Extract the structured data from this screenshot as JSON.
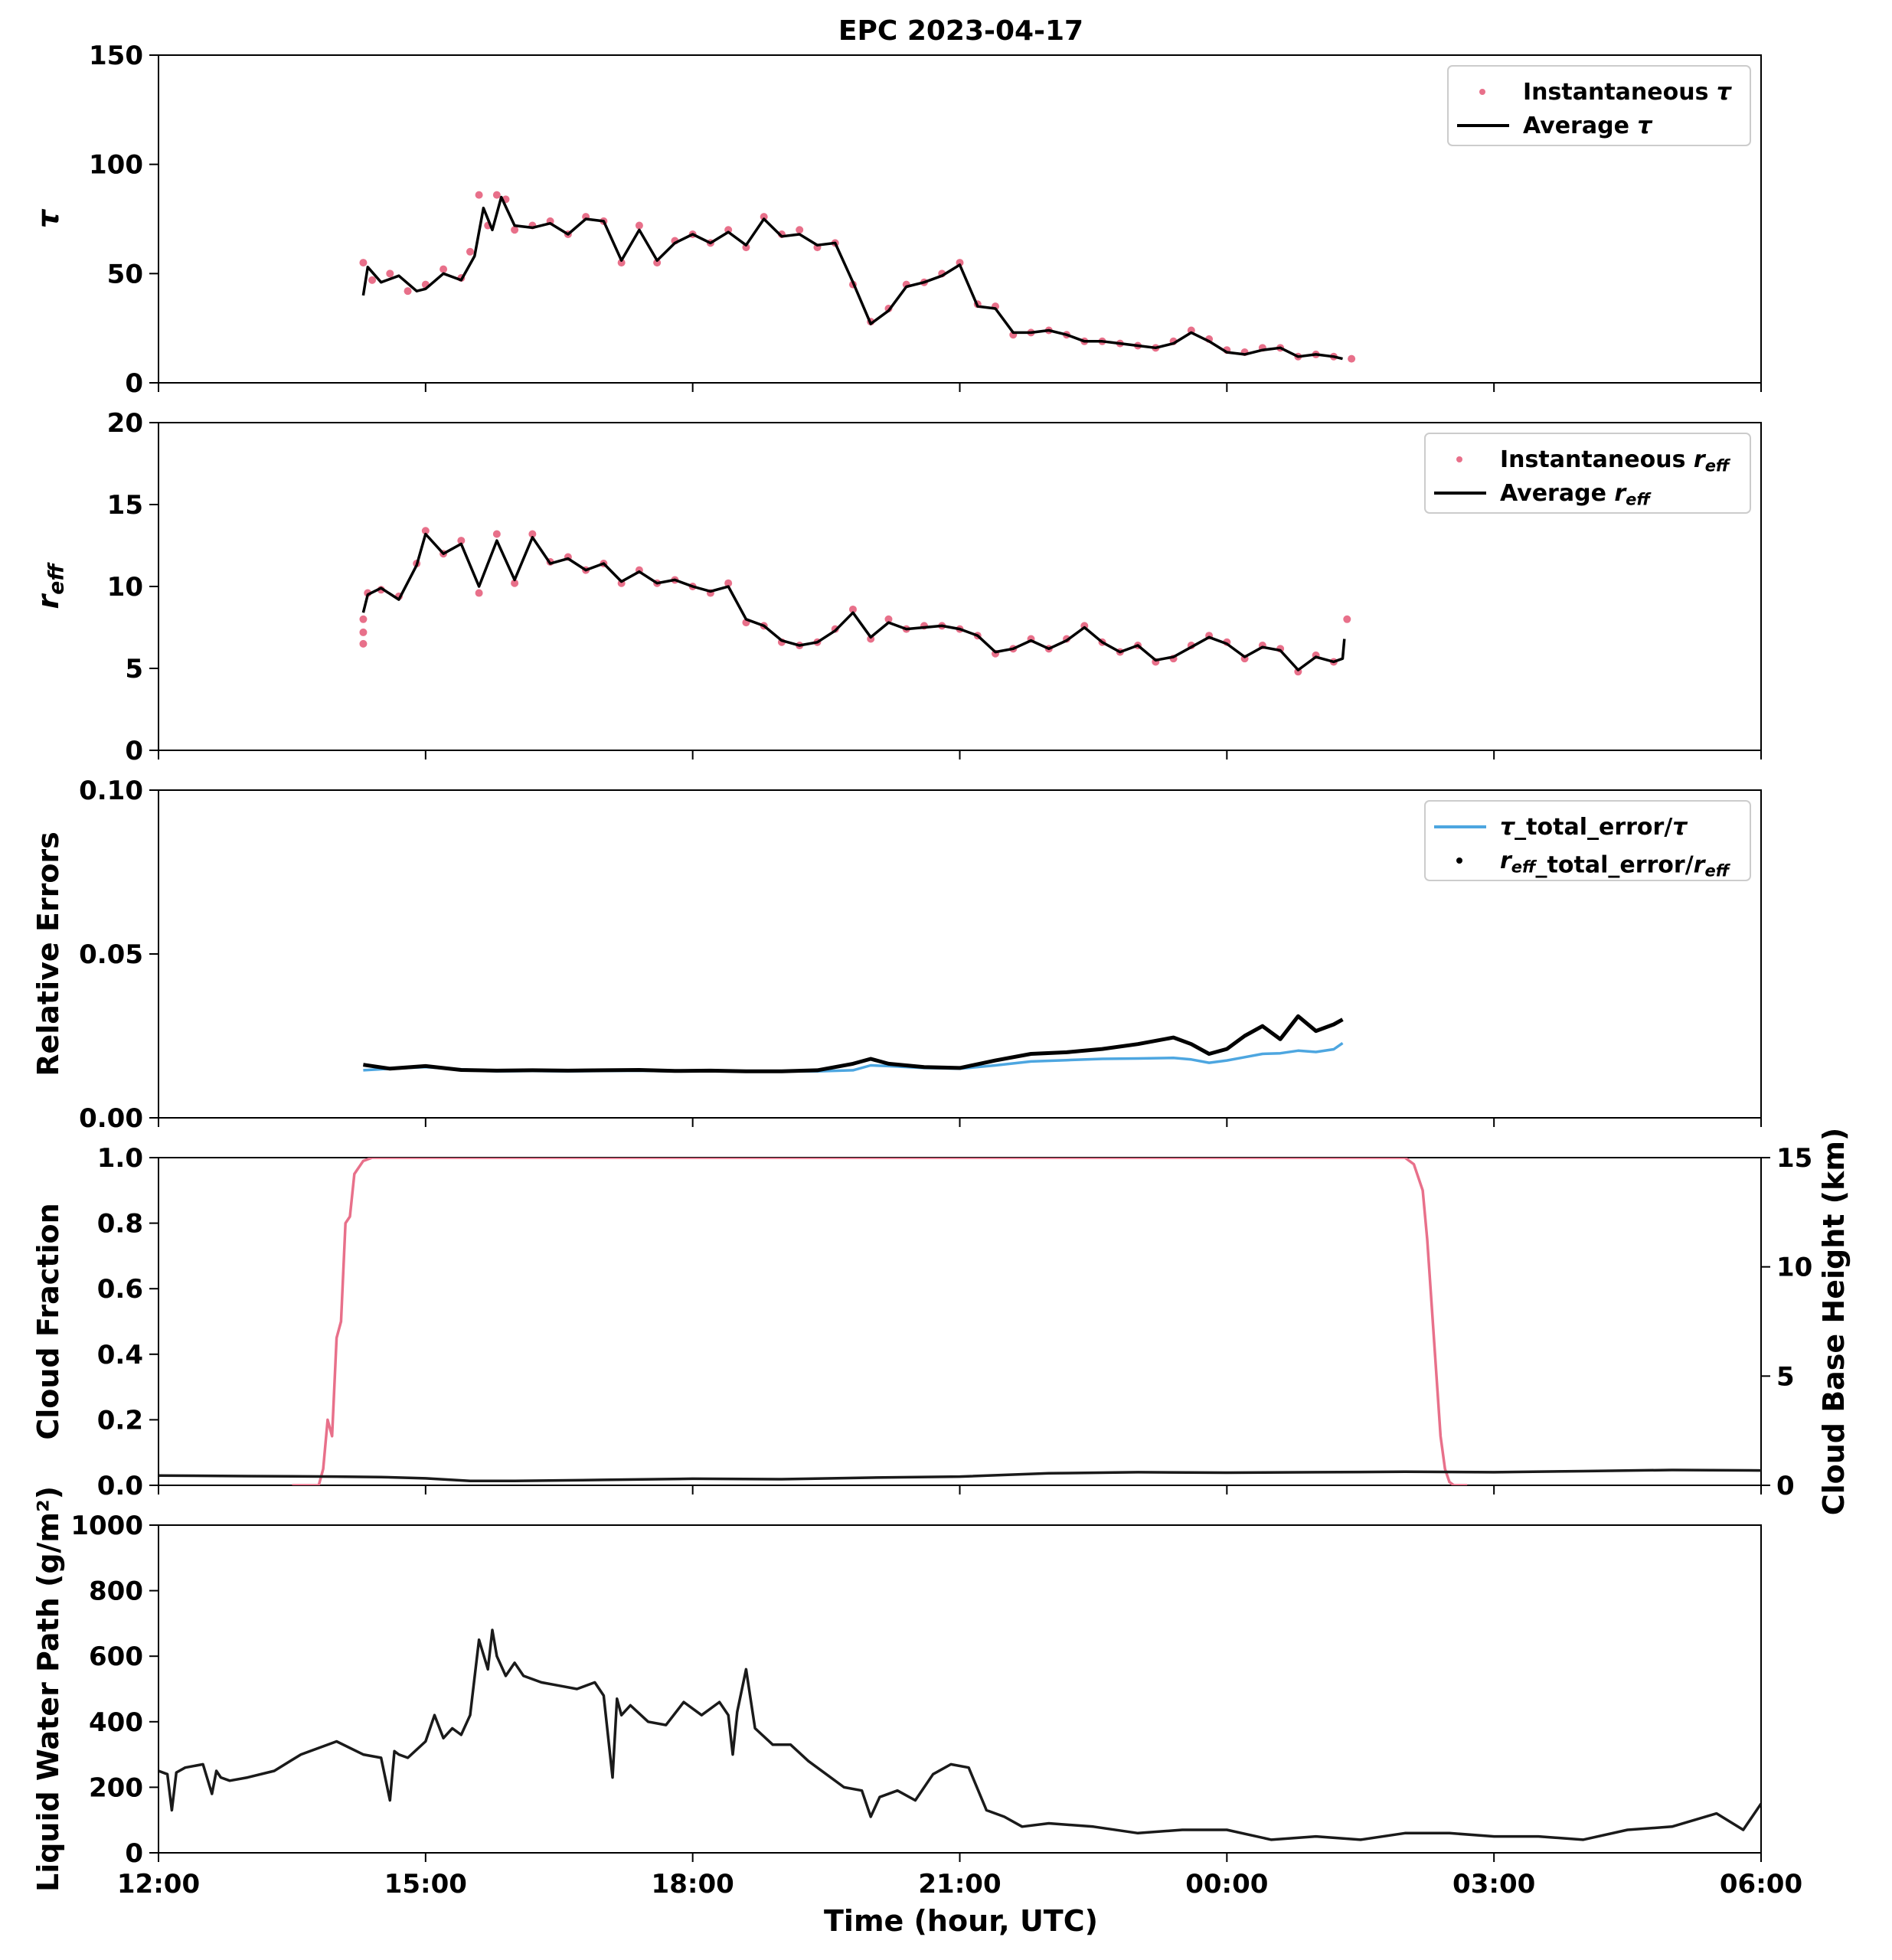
{
  "figure": {
    "title": "EPC 2023-04-17",
    "xlabel": "Time (hour, UTC)",
    "x_ticks": [
      "12:00",
      "15:00",
      "18:00",
      "21:00",
      "00:00",
      "03:00",
      "06:00"
    ],
    "colors": {
      "instantaneous": "#e8708a",
      "average": "#000000",
      "tau_error": "#4da6e0",
      "reff_error": "#000000",
      "cloud_fraction": "#e8708a",
      "cloud_base": "#1a1a1a",
      "lwp": "#1a1a1a"
    }
  },
  "chart_data": [
    {
      "type": "scatter",
      "panel": "tau",
      "ylabel": "τ",
      "xlim": [
        12,
        30
      ],
      "ylim": [
        0,
        150
      ],
      "y_ticks": [
        0,
        50,
        100,
        150
      ],
      "legend_position": "top-right",
      "series": [
        {
          "name": "Instantaneous τ",
          "kind": "points",
          "x": [
            14.3,
            14.4,
            14.6,
            14.8,
            15.0,
            15.2,
            15.4,
            15.5,
            15.6,
            15.7,
            15.8,
            15.9,
            16.0,
            16.2,
            16.4,
            16.6,
            16.8,
            17.0,
            17.2,
            17.4,
            17.6,
            17.8,
            18.0,
            18.2,
            18.4,
            18.6,
            18.8,
            19.0,
            19.2,
            19.4,
            19.6,
            19.8,
            20.0,
            20.2,
            20.4,
            20.6,
            20.8,
            21.0,
            21.2,
            21.4,
            21.6,
            21.8,
            22.0,
            22.2,
            22.4,
            22.6,
            22.8,
            23.0,
            23.2,
            23.4,
            23.6,
            23.8,
            24.0,
            24.2,
            24.4,
            24.6,
            24.8,
            25.0,
            25.2,
            25.4
          ],
          "y": [
            55,
            47,
            50,
            42,
            45,
            52,
            48,
            60,
            86,
            72,
            86,
            84,
            70,
            72,
            74,
            68,
            76,
            74,
            55,
            72,
            55,
            65,
            68,
            64,
            70,
            62,
            76,
            68,
            70,
            62,
            64,
            45,
            28,
            34,
            45,
            46,
            50,
            55,
            36,
            35,
            22,
            23,
            24,
            22,
            19,
            19,
            18,
            17,
            16,
            19,
            24,
            20,
            15,
            14,
            16,
            16,
            12,
            13,
            12,
            11
          ]
        },
        {
          "name": "Average τ",
          "kind": "line",
          "x": [
            14.3,
            14.35,
            14.5,
            14.7,
            14.9,
            15.0,
            15.2,
            15.4,
            15.55,
            15.65,
            15.75,
            15.85,
            16.0,
            16.2,
            16.4,
            16.6,
            16.8,
            17.0,
            17.2,
            17.4,
            17.6,
            17.8,
            18.0,
            18.2,
            18.4,
            18.6,
            18.8,
            19.0,
            19.2,
            19.4,
            19.6,
            19.8,
            20.0,
            20.2,
            20.4,
            20.6,
            20.8,
            21.0,
            21.2,
            21.4,
            21.6,
            21.8,
            22.0,
            22.2,
            22.4,
            22.6,
            22.8,
            23.0,
            23.2,
            23.4,
            23.6,
            23.8,
            24.0,
            24.2,
            24.4,
            24.6,
            24.8,
            25.0,
            25.2,
            25.3
          ],
          "y": [
            40,
            53,
            46,
            49,
            42,
            43,
            50,
            47,
            58,
            80,
            70,
            85,
            72,
            71,
            73,
            68,
            75,
            74,
            56,
            70,
            56,
            64,
            68,
            64,
            69,
            63,
            75,
            67,
            68,
            63,
            64,
            46,
            27,
            33,
            44,
            46,
            49,
            54,
            35,
            34,
            23,
            23,
            24,
            22,
            19,
            19,
            18,
            17,
            16,
            18,
            23,
            19,
            14,
            13,
            15,
            16,
            12,
            13,
            12,
            11
          ]
        }
      ]
    },
    {
      "type": "scatter",
      "panel": "reff",
      "ylabel": "reff",
      "xlim": [
        12,
        30
      ],
      "ylim": [
        0,
        20
      ],
      "y_ticks": [
        0,
        5,
        10,
        15,
        20
      ],
      "legend_position": "top-right",
      "series": [
        {
          "name": "Instantaneous reff",
          "kind": "points",
          "x": [
            14.3,
            14.3,
            14.3,
            14.35,
            14.5,
            14.7,
            14.9,
            15.0,
            15.2,
            15.4,
            15.6,
            15.8,
            16.0,
            16.2,
            16.4,
            16.6,
            16.8,
            17.0,
            17.2,
            17.4,
            17.6,
            17.8,
            18.0,
            18.2,
            18.4,
            18.6,
            18.8,
            19.0,
            19.2,
            19.4,
            19.6,
            19.8,
            20.0,
            20.2,
            20.4,
            20.6,
            20.8,
            21.0,
            21.2,
            21.4,
            21.6,
            21.8,
            22.0,
            22.2,
            22.4,
            22.6,
            22.8,
            23.0,
            23.2,
            23.4,
            23.6,
            23.8,
            24.0,
            24.2,
            24.4,
            24.6,
            24.8,
            25.0,
            25.2,
            25.35
          ],
          "y": [
            6.5,
            7.2,
            8.0,
            9.6,
            9.8,
            9.4,
            11.4,
            13.4,
            12.0,
            12.8,
            9.6,
            13.2,
            10.2,
            13.2,
            11.5,
            11.8,
            11.0,
            11.4,
            10.2,
            11.0,
            10.2,
            10.4,
            10.0,
            9.6,
            10.2,
            7.8,
            7.6,
            6.6,
            6.4,
            6.6,
            7.4,
            8.6,
            6.8,
            8.0,
            7.4,
            7.6,
            7.6,
            7.4,
            7.0,
            5.9,
            6.2,
            6.8,
            6.2,
            6.8,
            7.6,
            6.6,
            6.0,
            6.4,
            5.4,
            5.6,
            6.4,
            7.0,
            6.6,
            5.6,
            6.4,
            6.2,
            4.8,
            5.8,
            5.4,
            8.0
          ]
        },
        {
          "name": "Average reff",
          "kind": "line",
          "x": [
            14.3,
            14.35,
            14.5,
            14.7,
            14.9,
            15.0,
            15.2,
            15.4,
            15.6,
            15.8,
            16.0,
            16.2,
            16.4,
            16.6,
            16.8,
            17.0,
            17.2,
            17.4,
            17.6,
            17.8,
            18.0,
            18.2,
            18.4,
            18.6,
            18.8,
            19.0,
            19.2,
            19.4,
            19.6,
            19.8,
            20.0,
            20.2,
            20.4,
            20.6,
            20.8,
            21.0,
            21.2,
            21.4,
            21.6,
            21.8,
            22.0,
            22.2,
            22.4,
            22.6,
            22.8,
            23.0,
            23.2,
            23.4,
            23.6,
            23.8,
            24.0,
            24.2,
            24.4,
            24.6,
            24.8,
            25.0,
            25.2,
            25.3,
            25.32
          ],
          "y": [
            8.4,
            9.5,
            9.9,
            9.2,
            11.3,
            13.2,
            12.0,
            12.6,
            10.0,
            12.8,
            10.4,
            13.0,
            11.4,
            11.7,
            11.0,
            11.4,
            10.3,
            10.9,
            10.2,
            10.4,
            10.0,
            9.7,
            10.0,
            8.0,
            7.6,
            6.7,
            6.4,
            6.6,
            7.3,
            8.4,
            6.9,
            7.8,
            7.4,
            7.5,
            7.6,
            7.4,
            7.0,
            6.0,
            6.2,
            6.7,
            6.2,
            6.7,
            7.5,
            6.6,
            6.0,
            6.4,
            5.5,
            5.7,
            6.3,
            6.9,
            6.5,
            5.7,
            6.3,
            6.1,
            4.9,
            5.7,
            5.4,
            5.6,
            6.8
          ]
        }
      ]
    },
    {
      "type": "line",
      "panel": "relative_errors",
      "ylabel": "Relative Errors",
      "xlim": [
        12,
        30
      ],
      "ylim": [
        0,
        0.1
      ],
      "y_ticks": [
        0.0,
        0.05,
        0.1
      ],
      "y_tick_labels": [
        "0.00",
        "0.05",
        "0.10"
      ],
      "legend_position": "top-right",
      "series": [
        {
          "name": "τ_total_error/τ",
          "kind": "line",
          "x": [
            14.3,
            14.6,
            15.0,
            15.4,
            15.8,
            16.2,
            16.6,
            17.0,
            17.4,
            17.8,
            18.2,
            18.6,
            19.0,
            19.4,
            19.8,
            20.0,
            20.2,
            20.6,
            21.0,
            21.4,
            21.8,
            22.2,
            22.6,
            23.0,
            23.4,
            23.6,
            23.8,
            24.0,
            24.2,
            24.4,
            24.6,
            24.8,
            25.0,
            25.2,
            25.3
          ],
          "y": [
            0.0145,
            0.015,
            0.0155,
            0.0148,
            0.0142,
            0.0143,
            0.0142,
            0.0143,
            0.0144,
            0.0142,
            0.0143,
            0.0141,
            0.0142,
            0.0142,
            0.0145,
            0.016,
            0.0158,
            0.0152,
            0.015,
            0.016,
            0.0172,
            0.0176,
            0.018,
            0.0181,
            0.0183,
            0.0178,
            0.0168,
            0.0175,
            0.0185,
            0.0195,
            0.0197,
            0.0205,
            0.0201,
            0.0209,
            0.0228
          ]
        },
        {
          "name": "reff_total_error/reff",
          "kind": "points",
          "x": [
            14.3,
            14.6,
            15.0,
            15.4,
            15.8,
            16.2,
            16.6,
            17.0,
            17.4,
            17.8,
            18.2,
            18.6,
            19.0,
            19.4,
            19.8,
            20.0,
            20.2,
            20.6,
            21.0,
            21.4,
            21.8,
            22.2,
            22.6,
            23.0,
            23.4,
            23.6,
            23.8,
            24.0,
            24.2,
            24.4,
            24.6,
            24.8,
            25.0,
            25.2,
            25.3
          ],
          "y": [
            0.0162,
            0.015,
            0.0158,
            0.0146,
            0.0144,
            0.0145,
            0.0144,
            0.0145,
            0.0146,
            0.0143,
            0.0144,
            0.0142,
            0.0142,
            0.0145,
            0.0165,
            0.018,
            0.0165,
            0.0155,
            0.0152,
            0.0175,
            0.0195,
            0.02,
            0.021,
            0.0225,
            0.0245,
            0.0225,
            0.0195,
            0.021,
            0.025,
            0.028,
            0.024,
            0.031,
            0.0265,
            0.0285,
            0.03
          ]
        }
      ]
    },
    {
      "type": "line",
      "panel": "cloud",
      "ylabel": "Cloud Fraction",
      "y2label": "Cloud Base Height (km)",
      "xlim": [
        12,
        30
      ],
      "ylim": [
        0,
        1.0
      ],
      "y_ticks": [
        0.0,
        0.2,
        0.4,
        0.6,
        0.8,
        1.0
      ],
      "y_tick_labels": [
        "0.0",
        "0.2",
        "0.4",
        "0.6",
        "0.8",
        "1.0"
      ],
      "y2lim": [
        0,
        15
      ],
      "y2_ticks": [
        0,
        5,
        10,
        15
      ],
      "series": [
        {
          "name": "",
          "axis": "left",
          "kind": "line",
          "x": [
            13.5,
            13.8,
            13.85,
            13.9,
            13.95,
            14.0,
            14.05,
            14.1,
            14.15,
            14.2,
            14.25,
            14.3,
            14.4,
            14.6,
            26.0,
            26.1,
            26.2,
            26.25,
            26.3,
            26.35,
            26.4,
            26.45,
            26.5,
            26.55,
            26.6,
            26.7
          ],
          "y": [
            0.0,
            0.0,
            0.05,
            0.2,
            0.15,
            0.45,
            0.5,
            0.8,
            0.82,
            0.95,
            0.97,
            0.99,
            1.0,
            1.0,
            1.0,
            0.98,
            0.9,
            0.75,
            0.55,
            0.35,
            0.15,
            0.05,
            0.01,
            0.0,
            0.0,
            0.0
          ]
        },
        {
          "name": "",
          "axis": "right",
          "kind": "line",
          "x": [
            12.0,
            13.0,
            14.0,
            14.5,
            15.0,
            15.5,
            16.0,
            17.0,
            18.0,
            19.0,
            20.0,
            21.0,
            22.0,
            23.0,
            24.0,
            25.0,
            26.0,
            27.0,
            28.0,
            29.0,
            30.0
          ],
          "y": [
            0.45,
            0.42,
            0.4,
            0.38,
            0.32,
            0.2,
            0.2,
            0.25,
            0.3,
            0.28,
            0.35,
            0.4,
            0.55,
            0.6,
            0.58,
            0.6,
            0.62,
            0.6,
            0.65,
            0.7,
            0.68
          ]
        }
      ]
    },
    {
      "type": "line",
      "panel": "lwp",
      "ylabel": "Liquid Water Path (g/m²)",
      "xlim": [
        12,
        30
      ],
      "ylim": [
        0,
        1000
      ],
      "y_ticks": [
        0,
        200,
        400,
        600,
        800,
        1000
      ],
      "series": [
        {
          "name": "",
          "kind": "line",
          "x": [
            12.0,
            12.1,
            12.15,
            12.2,
            12.3,
            12.5,
            12.6,
            12.65,
            12.7,
            12.8,
            13.0,
            13.3,
            13.6,
            14.0,
            14.3,
            14.5,
            14.6,
            14.65,
            14.7,
            14.8,
            15.0,
            15.1,
            15.2,
            15.3,
            15.4,
            15.5,
            15.6,
            15.7,
            15.75,
            15.8,
            15.9,
            16.0,
            16.1,
            16.3,
            16.5,
            16.7,
            16.9,
            17.0,
            17.1,
            17.15,
            17.2,
            17.3,
            17.5,
            17.7,
            17.9,
            18.1,
            18.3,
            18.4,
            18.45,
            18.5,
            18.6,
            18.7,
            18.9,
            19.1,
            19.3,
            19.5,
            19.7,
            19.9,
            20.0,
            20.1,
            20.3,
            20.5,
            20.7,
            20.9,
            21.1,
            21.3,
            21.5,
            21.7,
            22.0,
            22.5,
            23.0,
            23.5,
            24.0,
            24.5,
            25.0,
            25.5,
            26.0,
            26.5,
            27.0,
            27.5,
            28.0,
            28.5,
            29.0,
            29.5,
            29.8,
            30.0
          ],
          "y": [
            250,
            240,
            130,
            245,
            260,
            270,
            180,
            250,
            230,
            220,
            230,
            250,
            300,
            340,
            300,
            290,
            160,
            310,
            300,
            290,
            340,
            420,
            350,
            380,
            360,
            420,
            650,
            560,
            680,
            600,
            540,
            580,
            540,
            520,
            510,
            500,
            520,
            480,
            230,
            470,
            420,
            450,
            400,
            390,
            460,
            420,
            460,
            420,
            300,
            430,
            560,
            380,
            330,
            330,
            280,
            240,
            200,
            190,
            110,
            170,
            190,
            160,
            240,
            270,
            260,
            130,
            110,
            80,
            90,
            80,
            60,
            70,
            70,
            40,
            50,
            40,
            60,
            60,
            50,
            50,
            40,
            70,
            80,
            120,
            70,
            150
          ]
        }
      ]
    }
  ]
}
